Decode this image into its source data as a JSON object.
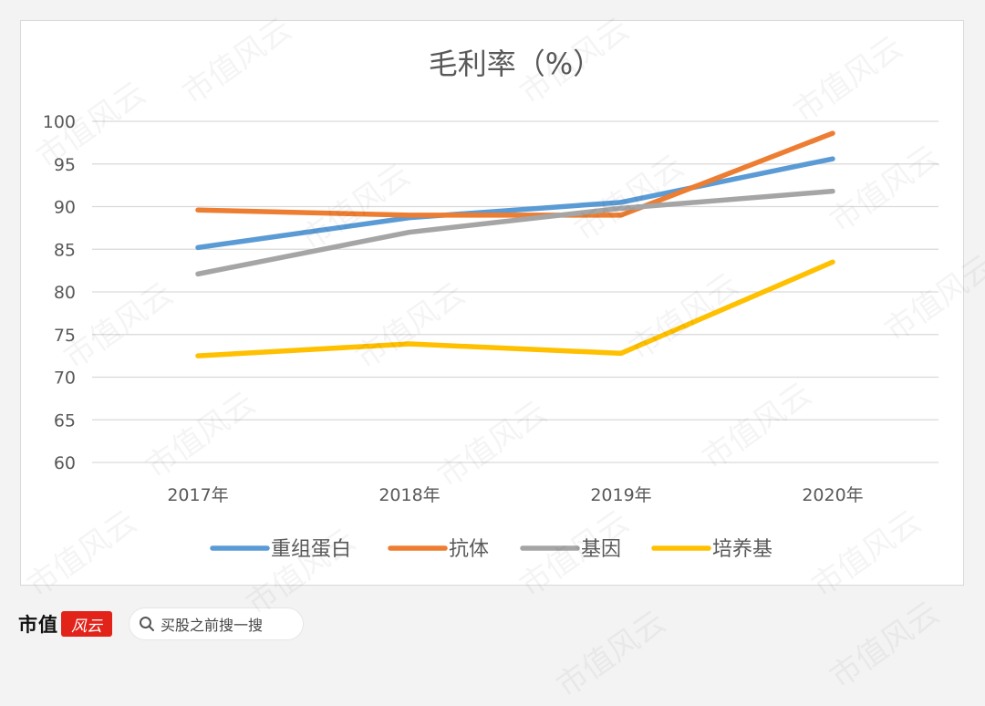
{
  "chart_data": {
    "type": "line",
    "title": "毛利率（%）",
    "categories": [
      "2017年",
      "2018年",
      "2019年",
      "2020年"
    ],
    "ylim": [
      60,
      100
    ],
    "yticks": [
      60,
      65,
      70,
      75,
      80,
      85,
      90,
      95,
      100
    ],
    "grid": true,
    "legend": "bottom",
    "series": [
      {
        "name": "重组蛋白",
        "color": "#5b9bd5",
        "values": [
          85.2,
          88.7,
          90.5,
          95.6
        ]
      },
      {
        "name": "抗体",
        "color": "#ed7d31",
        "values": [
          89.6,
          89.0,
          89.0,
          98.6
        ]
      },
      {
        "name": "基因",
        "color": "#a5a5a5",
        "values": [
          82.1,
          87.0,
          89.8,
          91.8
        ]
      },
      {
        "name": "培养基",
        "color": "#ffc000",
        "values": [
          72.5,
          73.9,
          72.8,
          83.5
        ]
      }
    ]
  },
  "footer": {
    "brand": "市值",
    "brand_logo": "风云",
    "search_icon": "search-icon",
    "search_text": "买股之前搜一搜"
  },
  "watermark": "市值风云"
}
